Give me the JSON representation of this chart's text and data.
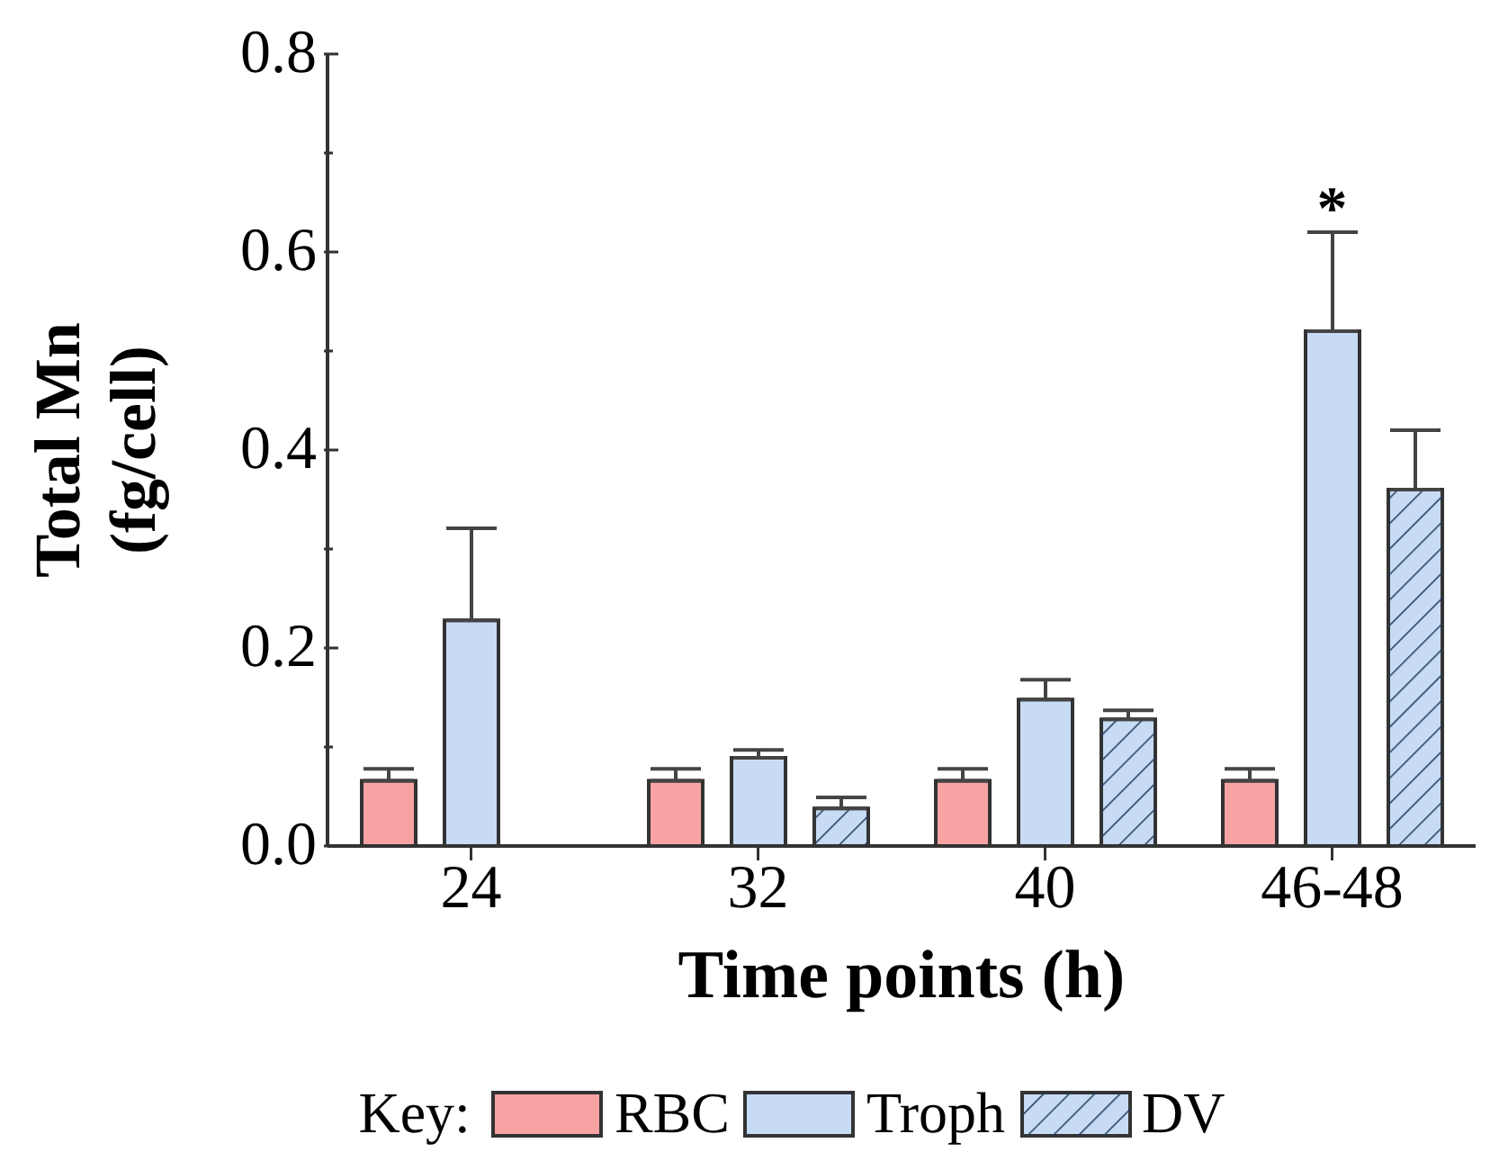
{
  "chart_data": {
    "type": "bar",
    "xlabel": "Time points (h)",
    "ylabel": "Total Mn\n(fg/cell)",
    "legend_title": "Key:",
    "legend": "bottom",
    "categories": [
      "24",
      "32",
      "40",
      "46-48"
    ],
    "ylim": [
      0,
      0.8
    ],
    "yticks": [
      {
        "value": 0,
        "label": "0.0"
      },
      {
        "value": 0.1,
        "label": null
      },
      {
        "value": 0.2,
        "label": "0.2"
      },
      {
        "value": 0.3,
        "label": null
      },
      {
        "value": 0.4,
        "label": "0.4"
      },
      {
        "value": 0.5,
        "label": null
      },
      {
        "value": 0.6,
        "label": "0.6"
      },
      {
        "value": 0.7,
        "label": null
      },
      {
        "value": 0.8,
        "label": "0.8"
      }
    ],
    "series": [
      {
        "name": "RBC",
        "color": "#f8a3a3",
        "values": [
          0.066,
          0.066,
          0.066,
          0.066
        ],
        "errors": [
          [
            0.066,
            0.078
          ],
          [
            0.066,
            0.078
          ],
          [
            0.066,
            0.078
          ],
          [
            0.066,
            0.078
          ]
        ]
      },
      {
        "name": "Troph",
        "color": "#c7dbf5",
        "values": [
          0.228,
          0.089,
          0.148,
          0.52
        ],
        "errors": [
          [
            0.228,
            0.321
          ],
          [
            0.089,
            0.097
          ],
          [
            0.148,
            0.168
          ],
          [
            0.52,
            0.62
          ]
        ]
      },
      {
        "name": "DV",
        "color": "#c7dbf5",
        "values": [
          0,
          0.038,
          0.128,
          0.36
        ],
        "errors": [
          null,
          [
            0.038,
            0.049
          ],
          [
            0.128,
            0.137
          ],
          [
            0.36,
            0.42
          ]
        ]
      }
    ],
    "annotations": [
      {
        "text": "*",
        "x": "46-48",
        "y": 0.62
      }
    ]
  }
}
